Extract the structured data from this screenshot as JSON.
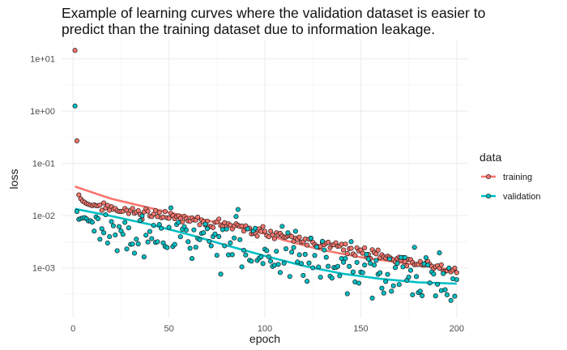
{
  "chart_data": {
    "type": "scatter",
    "title_lines": [
      "Example of learning curves where the validation dataset is easier to",
      "predict than the training dataset due to information leakage."
    ],
    "xlabel": "epoch",
    "ylabel": "loss",
    "y_scale": "log10",
    "xlim": [
      -6,
      206
    ],
    "ylim_log10": [
      -3.95,
      1.35
    ],
    "x_ticks": [
      0,
      50,
      100,
      150,
      200
    ],
    "y_ticks": [
      {
        "value": 10,
        "label": "1e+01"
      },
      {
        "value": 1,
        "label": "1e+00"
      },
      {
        "value": 0.1,
        "label": "1e-01"
      },
      {
        "value": 0.01,
        "label": "1e-02"
      },
      {
        "value": 0.001,
        "label": "1e-03"
      }
    ],
    "legend": {
      "title": "data",
      "position": "right"
    },
    "grid": true,
    "series": [
      {
        "name": "training",
        "color": "#F8766D",
        "epochs": [
          1,
          200
        ],
        "first_points": [
          14.5,
          0.27,
          0.025,
          0.021,
          0.019,
          0.018,
          0.017,
          0.0165,
          0.016,
          0.0155
        ],
        "trend_start": 0.0158,
        "trend_end": 0.00085,
        "trend_curve": 1.25,
        "noise": 0.045,
        "smooth": [
          [
            1,
            0.036
          ],
          [
            20,
            0.021
          ],
          [
            50,
            0.0115
          ],
          [
            80,
            0.0068
          ],
          [
            100,
            0.0045
          ],
          [
            110,
            0.0034
          ],
          [
            130,
            0.0022
          ],
          [
            150,
            0.0016
          ],
          [
            175,
            0.0012
          ],
          [
            200,
            0.0009
          ]
        ]
      },
      {
        "name": "validation",
        "color": "#00BFC4",
        "epochs": [
          1,
          200
        ],
        "first_points": [
          1.25,
          0.012,
          0.0085,
          0.0088,
          0.009,
          0.0092,
          0.0087,
          0.0079,
          0.008,
          0.0075
        ],
        "trend_start": 0.008,
        "trend_end": 0.00045,
        "trend_curve": 1.15,
        "noise": 0.24,
        "smooth": [
          [
            1,
            0.0135
          ],
          [
            20,
            0.0098
          ],
          [
            40,
            0.0068
          ],
          [
            60,
            0.0044
          ],
          [
            80,
            0.0027
          ],
          [
            100,
            0.0017
          ],
          [
            120,
            0.0011
          ],
          [
            140,
            0.00078
          ],
          [
            160,
            0.00062
          ],
          [
            180,
            0.00053
          ],
          [
            200,
            0.0005
          ]
        ]
      }
    ]
  }
}
